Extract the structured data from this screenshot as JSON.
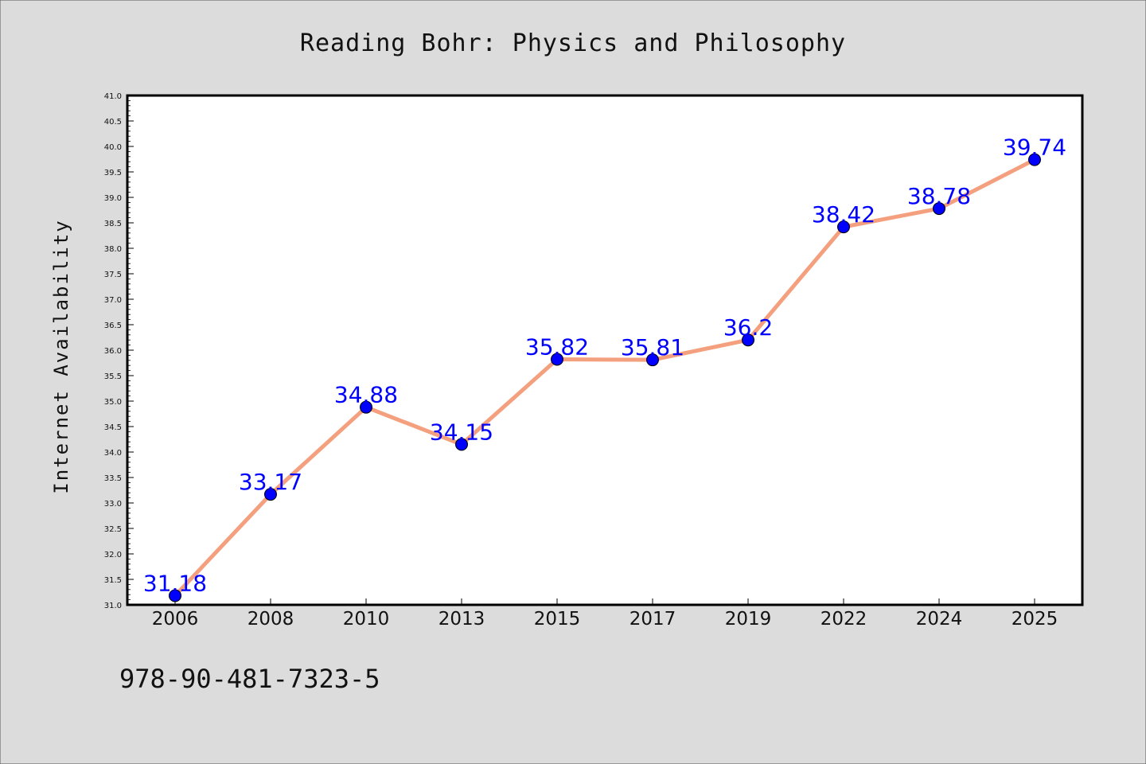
{
  "chart_data": {
    "type": "line",
    "title": "Reading Bohr: Physics and Philosophy",
    "xlabel": "",
    "ylabel": "Internet Availability",
    "categories": [
      "2006",
      "2008",
      "2010",
      "2013",
      "2015",
      "2017",
      "2019",
      "2022",
      "2024",
      "2025"
    ],
    "series": [
      {
        "values": [
          31.18,
          33.17,
          34.88,
          34.15,
          35.82,
          35.81,
          36.2,
          38.42,
          38.78,
          39.74
        ],
        "data_labels": [
          "31.18",
          "33.17",
          "34.88",
          "34.15",
          "35.82",
          "35.81",
          "36.2",
          "38.42",
          "38.78",
          "39.74"
        ]
      }
    ],
    "ylim": [
      31.0,
      41.0
    ],
    "yticks": [
      "31.0",
      "31.5",
      "32.0",
      "32.5",
      "33.0",
      "33.5",
      "34.0",
      "34.5",
      "35.0",
      "35.5",
      "36.0",
      "36.5",
      "37.0",
      "37.5",
      "38.0",
      "38.5",
      "39.0",
      "39.5",
      "40.0",
      "40.5",
      "41.0"
    ],
    "grid": false,
    "legend": "none",
    "colors": {
      "line": "#f4a07e",
      "marker": "#0000ff",
      "label": "#0000ff",
      "background": "#dcdcdc",
      "plot_background": "#ffffff"
    }
  },
  "footer": {
    "isbn": "978-90-481-7323-5"
  }
}
